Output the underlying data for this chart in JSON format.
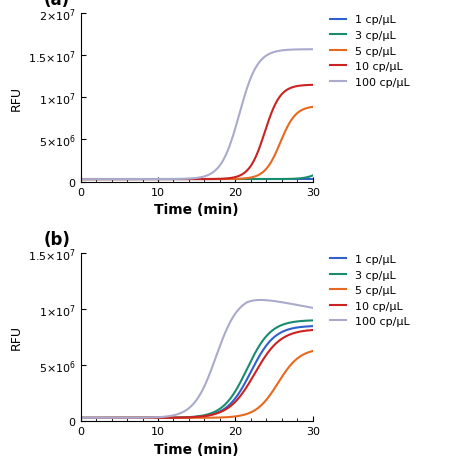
{
  "title_a": "(a)",
  "title_b": "(b)",
  "xlabel": "Time (min)",
  "ylabel": "RFU",
  "xmin": 0,
  "xmax": 30,
  "colors": {
    "1": "#3060cc",
    "3": "#1a8c6e",
    "5": "#e86820",
    "10": "#cc2222",
    "100": "#aaaacc"
  },
  "legend_labels": [
    "1 cp/μL",
    "3 cp/μL",
    "5 cp/μL",
    "10 cp/μL",
    "100 cp/μL"
  ],
  "ylim_a": [
    0,
    20000000.0
  ],
  "ylim_b": [
    0,
    15000000.0
  ],
  "yticks_a": [
    0,
    5000000.0,
    10000000.0,
    15000000.0,
    20000000.0
  ],
  "yticks_b": [
    0,
    5000000.0,
    10000000.0,
    15000000.0
  ],
  "background": "#ffffff"
}
